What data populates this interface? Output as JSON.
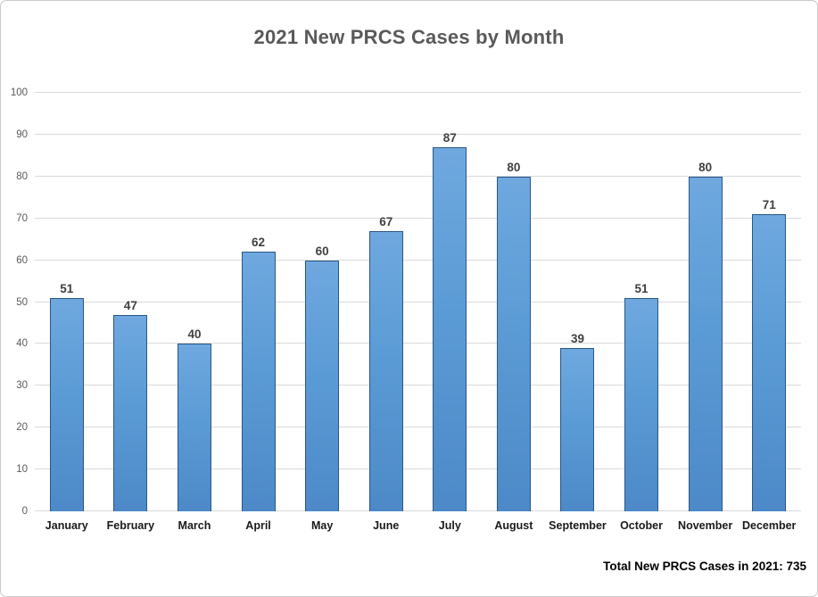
{
  "chart_data": {
    "type": "bar",
    "title": "2021 New PRCS Cases by Month",
    "categories": [
      "January",
      "February",
      "March",
      "April",
      "May",
      "June",
      "July",
      "August",
      "September",
      "October",
      "November",
      "December"
    ],
    "values": [
      51,
      47,
      40,
      62,
      60,
      67,
      87,
      80,
      39,
      51,
      80,
      71
    ],
    "xlabel": "",
    "ylabel": "",
    "ylim": [
      0,
      100
    ],
    "ytick_step": 10,
    "grid": "horizontal",
    "legend": "none",
    "footer": "Total New PRCS Cases in 2021: 735",
    "colors": {
      "bar_fill": "#5b9bd5",
      "bar_fill_top": "#6fa8df",
      "bar_fill_bottom": "#4d89c8",
      "bar_border": "#2a5784",
      "gridline": "#d9d9d9",
      "title_text": "#595959",
      "axis_tick_text": "#595959",
      "category_text": "#1a1a1a",
      "value_label_text": "#404040",
      "frame_border": "#c9c9c9",
      "background": "#ffffff"
    }
  }
}
